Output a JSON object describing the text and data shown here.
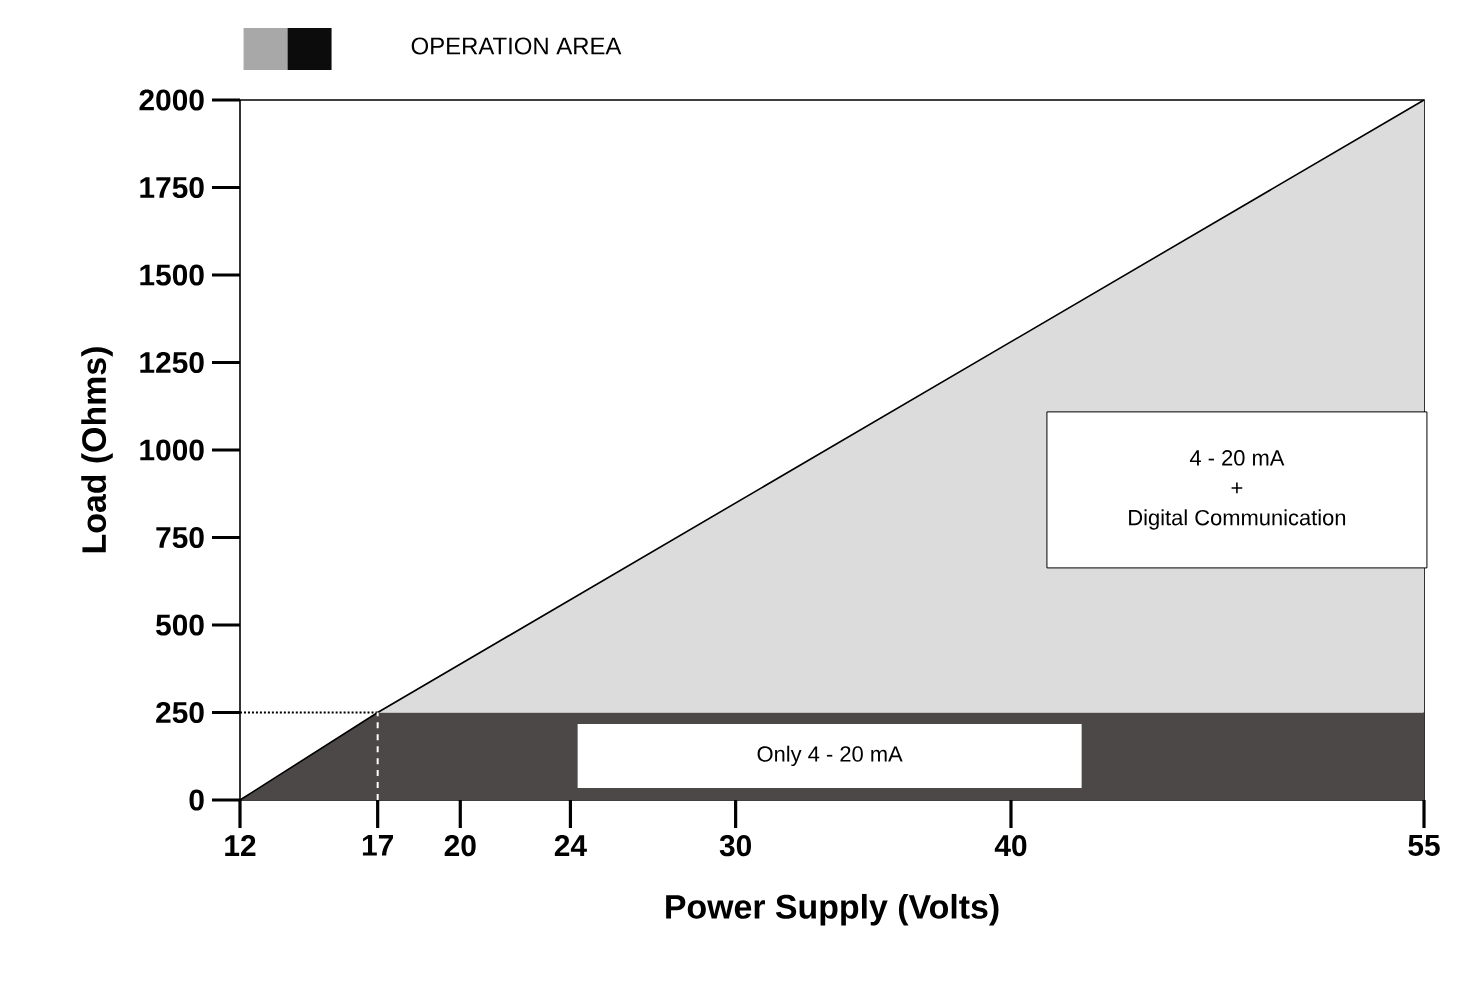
{
  "chart_data": {
    "type": "area",
    "stacked": true,
    "xlabel": "Power Supply (Volts)",
    "ylabel": "Load (Ohms)",
    "x": [
      12,
      17,
      55
    ],
    "series": [
      {
        "color": "#4d4848",
        "values": [
          0,
          250,
          250
        ]
      },
      {
        "color": "#dcdcdc",
        "values": [
          0,
          0,
          1750
        ]
      }
    ],
    "xlim": [
      12,
      55
    ],
    "ylim": [
      0,
      2000
    ],
    "xticks": [
      12,
      17,
      20,
      24,
      30,
      40,
      55
    ],
    "yticks": [
      0,
      250,
      500,
      750,
      1000,
      1250,
      1500,
      1750,
      2000
    ],
    "ref_lines": [
      {
        "axis": "y",
        "value": 250,
        "color": "#000000",
        "line_style": "dotted"
      },
      {
        "axis": "x",
        "value": 17,
        "color": "#ffffff",
        "line_style": "dashed"
      }
    ],
    "annotations": [
      "OPERATION AREA",
      "4 - 20 mA",
      "+",
      "Digital Communication",
      "Only 4 - 20 mA"
    ]
  }
}
